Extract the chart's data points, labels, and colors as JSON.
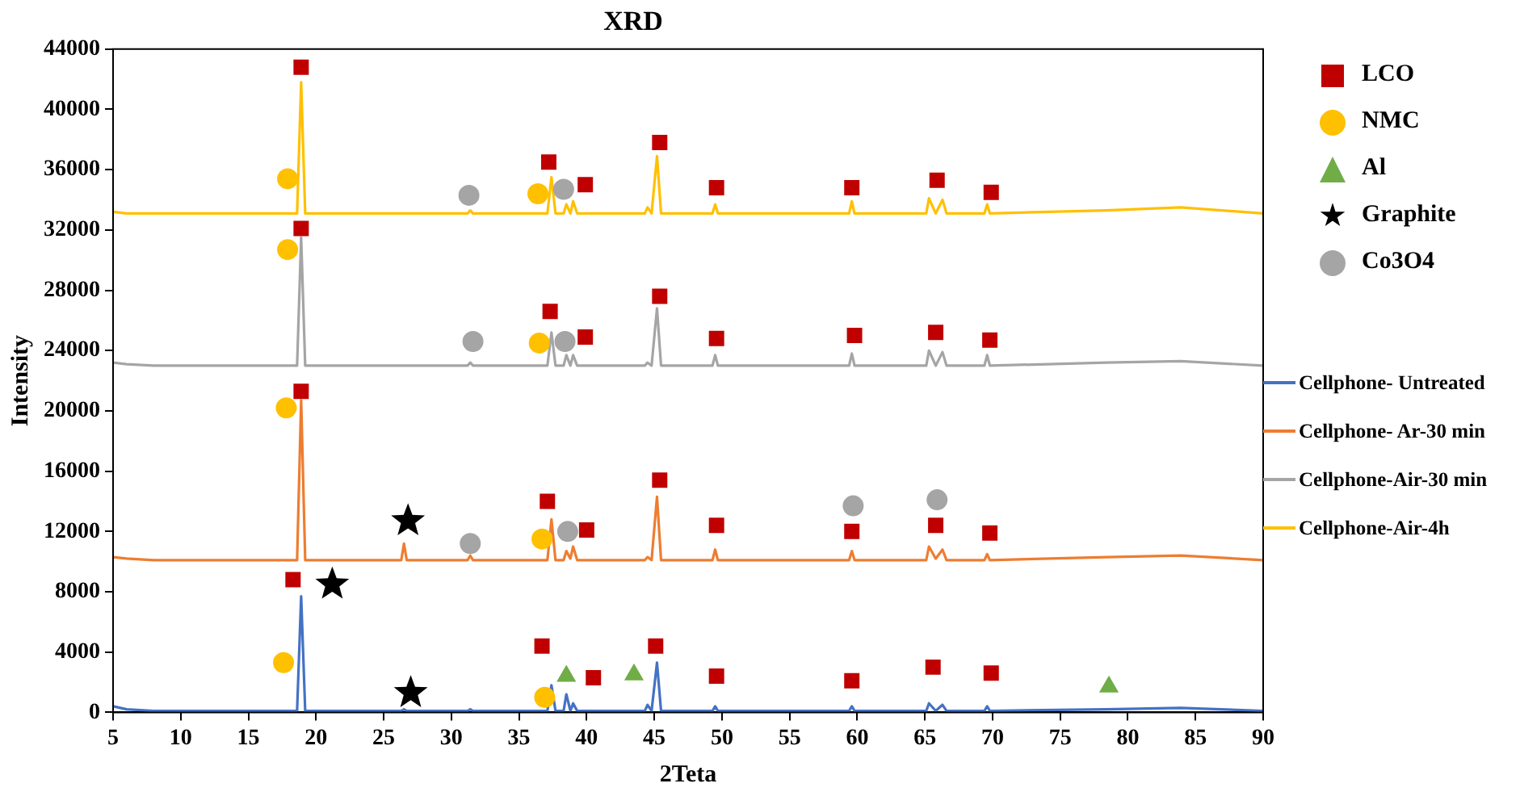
{
  "chart_data": {
    "type": "line",
    "title": "XRD",
    "xlabel": "2Teta",
    "ylabel": "Intensity",
    "legend": "right",
    "xlim": [
      5,
      90
    ],
    "xticks": [
      5,
      10,
      15,
      20,
      25,
      30,
      35,
      40,
      45,
      50,
      55,
      60,
      65,
      70,
      75,
      80,
      85,
      90
    ],
    "ylim": [
      0,
      44000
    ],
    "yticks": [
      0,
      4000,
      8000,
      12000,
      16000,
      20000,
      24000,
      28000,
      32000,
      36000,
      40000,
      44000
    ],
    "x": [
      5,
      6,
      8,
      12,
      18.6,
      18.9,
      19.2,
      26.3,
      26.5,
      26.7,
      31.2,
      31.4,
      31.6,
      37.1,
      37.4,
      37.7,
      38.3,
      38.5,
      38.8,
      39.0,
      39.3,
      44.3,
      44.5,
      44.8,
      45.2,
      45.5,
      49.3,
      49.5,
      49.7,
      59.4,
      59.6,
      59.8,
      65.1,
      65.3,
      65.8,
      66.3,
      66.6,
      69.4,
      69.6,
      69.8,
      78.4,
      83.9,
      90
    ],
    "series": [
      {
        "name": "LCO",
        "type": "scatter",
        "marker": "square",
        "color": "#c00000",
        "x": [
          18.9,
          37.2,
          39.9,
          45.4,
          49.6,
          59.6,
          65.9,
          69.9,
          18.9,
          37.3,
          39.9,
          45.4,
          49.6,
          59.8,
          65.8,
          69.8,
          18.9,
          37.1,
          40.0,
          45.4,
          49.6,
          59.6,
          65.8,
          69.8,
          18.3,
          36.7,
          40.5,
          45.1,
          49.6,
          59.6,
          65.6,
          69.9
        ],
        "values": [
          42800,
          36500,
          35000,
          37800,
          34800,
          34800,
          35300,
          34500,
          32100,
          26600,
          24900,
          27600,
          24800,
          25000,
          25200,
          24700,
          21300,
          14000,
          12100,
          15400,
          12400,
          12000,
          12400,
          11900,
          8800,
          4400,
          2300,
          4400,
          2400,
          2100,
          3000,
          2600
        ]
      },
      {
        "name": "NMC",
        "type": "scatter",
        "marker": "circle",
        "color": "#ffc000",
        "x": [
          17.9,
          36.4,
          17.9,
          36.5,
          17.8,
          36.7,
          17.6,
          36.9
        ],
        "values": [
          35400,
          34400,
          30700,
          24500,
          20200,
          11500,
          3300,
          1000
        ]
      },
      {
        "name": "Al",
        "type": "scatter",
        "marker": "triangle",
        "color": "#70ad47",
        "x": [
          38.5,
          43.5,
          78.6
        ],
        "values": [
          2400,
          2500,
          1700
        ]
      },
      {
        "name": "Graphite",
        "type": "scatter",
        "marker": "star",
        "color": "#000000",
        "x": [
          26.8,
          21.2,
          27.0
        ],
        "values": [
          12700,
          8500,
          1300
        ]
      },
      {
        "name": "Co3O4",
        "type": "scatter",
        "marker": "circle",
        "color": "#a5a5a5",
        "x": [
          31.3,
          38.3,
          31.6,
          38.4,
          31.4,
          38.6,
          59.7,
          65.9
        ],
        "values": [
          34300,
          34700,
          24600,
          24600,
          11200,
          12000,
          13700,
          14100
        ]
      },
      {
        "name": "Cellphone- Untreated",
        "marker": "none",
        "color": "#4472c4",
        "values": [
          400,
          200,
          100,
          100,
          100,
          7700,
          100,
          100,
          200,
          100,
          100,
          200,
          100,
          100,
          1800,
          100,
          100,
          1200,
          100,
          600,
          100,
          100,
          500,
          100,
          3300,
          100,
          100,
          400,
          100,
          100,
          400,
          100,
          100,
          600,
          100,
          500,
          100,
          100,
          400,
          100,
          200,
          300,
          100
        ]
      },
      {
        "name": "Cellphone- Ar-30 min",
        "marker": "none",
        "color": "#ed7d31",
        "values": [
          10300,
          10200,
          10100,
          10100,
          10100,
          20700,
          10100,
          10100,
          11200,
          10100,
          10100,
          10400,
          10100,
          10100,
          12800,
          10100,
          10100,
          10700,
          10200,
          11000,
          10100,
          10100,
          10300,
          10100,
          14300,
          10100,
          10100,
          10800,
          10100,
          10100,
          10700,
          10100,
          10100,
          11000,
          10200,
          10800,
          10100,
          10100,
          10500,
          10100,
          10300,
          10400,
          10100
        ]
      },
      {
        "name": "Cellphone-Air-30 min",
        "marker": "none",
        "color": "#a5a5a5",
        "values": [
          23200,
          23100,
          23000,
          23000,
          23000,
          31500,
          23000,
          23000,
          23000,
          23000,
          23000,
          23200,
          23000,
          23000,
          25200,
          23000,
          23000,
          23700,
          23000,
          23700,
          23000,
          23000,
          23200,
          23000,
          26800,
          23000,
          23000,
          23700,
          23000,
          23000,
          23800,
          23000,
          23000,
          24000,
          23000,
          23900,
          23000,
          23000,
          23700,
          23000,
          23200,
          23300,
          23000
        ]
      },
      {
        "name": "Cellphone-Air-4h",
        "marker": "none",
        "color": "#ffc000",
        "values": [
          33200,
          33100,
          33100,
          33100,
          33100,
          41800,
          33100,
          33100,
          33100,
          33100,
          33100,
          33300,
          33100,
          33100,
          35500,
          33100,
          33100,
          33700,
          33100,
          33900,
          33100,
          33100,
          33500,
          33100,
          36900,
          33100,
          33100,
          33700,
          33100,
          33100,
          33900,
          33100,
          33100,
          34100,
          33100,
          34000,
          33100,
          33100,
          33700,
          33100,
          33300,
          33500,
          33100
        ]
      }
    ]
  }
}
